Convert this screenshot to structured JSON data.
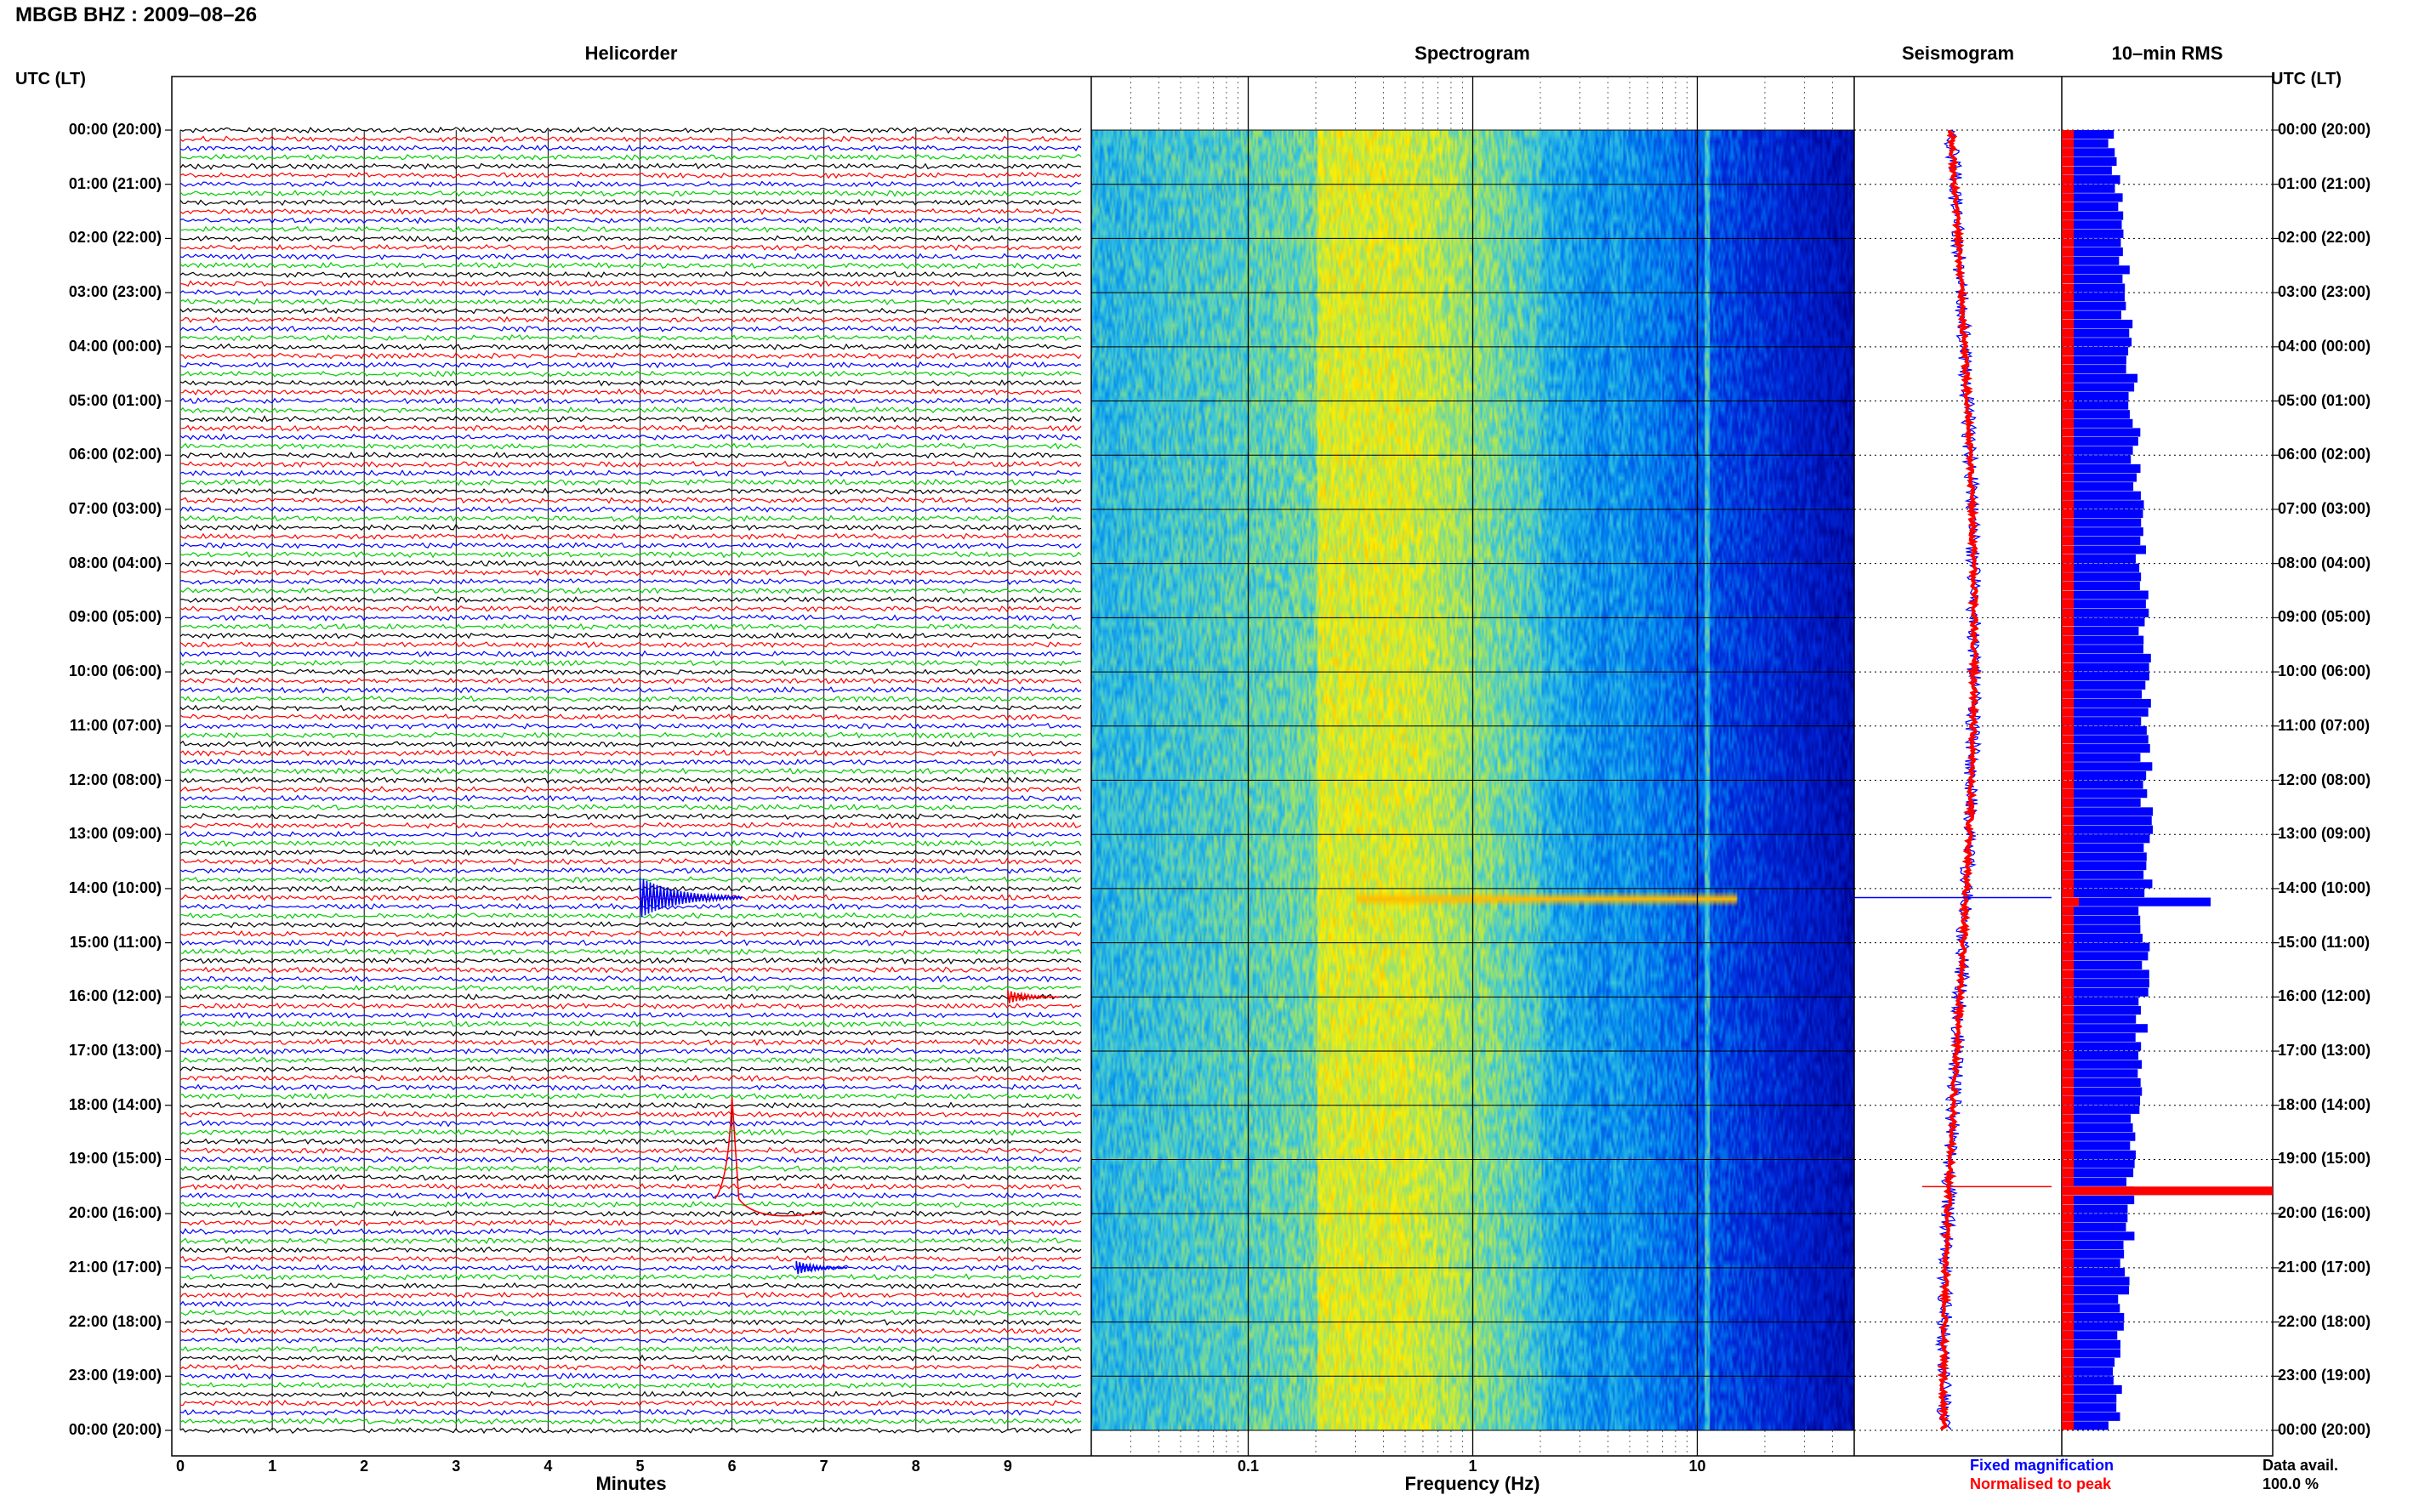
{
  "header": {
    "station_title": "MBGB BHZ : 2009–08–26",
    "left_axis_header": "UTC (LT)",
    "right_axis_header": "UTC (LT)"
  },
  "panels": {
    "helicorder": "Helicorder",
    "spectrogram": "Spectrogram",
    "seismogram": "Seismogram",
    "rms": "10–min RMS"
  },
  "axes": {
    "minutes_label": "Minutes",
    "frequency_label": "Frequency (Hz)"
  },
  "footer": {
    "fixed_magnification": "Fixed magnification",
    "normalised_to_peak": "Normalised to peak",
    "data_avail_label": "Data avail.",
    "data_avail_value": "100.0 %"
  },
  "colors": {
    "trace_cycle": [
      "#000000",
      "#ff0000",
      "#0000ff",
      "#00cc00"
    ],
    "fixed_magnification": "#0000ff",
    "normalised_to_peak": "#ff0000",
    "grid": "#000000"
  },
  "chart_data": [
    {
      "type": "line",
      "panel": "helicorder",
      "xlabel": "Minutes",
      "x_ticks": [
        "0",
        "1",
        "2",
        "3",
        "4",
        "5",
        "6",
        "7",
        "8",
        "9"
      ],
      "xlim": [
        0,
        10
      ],
      "time_labels": [
        "00:00 (20:00)",
        "01:00 (21:00)",
        "02:00 (22:00)",
        "03:00 (23:00)",
        "04:00 (00:00)",
        "05:00 (01:00)",
        "06:00 (02:00)",
        "07:00 (03:00)",
        "08:00 (04:00)",
        "09:00 (05:00)",
        "10:00 (06:00)",
        "11:00 (07:00)",
        "12:00 (08:00)",
        "13:00 (09:00)",
        "14:00 (10:00)",
        "15:00 (11:00)",
        "16:00 (12:00)",
        "17:00 (13:00)",
        "18:00 (14:00)",
        "19:00 (15:00)",
        "20:00 (16:00)",
        "21:00 (17:00)",
        "22:00 (18:00)",
        "23:00 (19:00)",
        "00:00 (20:00)"
      ],
      "traces_per_hour": 6,
      "events": [
        {
          "time": "14:10",
          "minute": 5.0,
          "color": "blue"
        },
        {
          "time": "16:00",
          "minute": 9.0,
          "color": "red"
        },
        {
          "time": "18:00",
          "minute": 6.0,
          "color": "red"
        },
        {
          "time": "21:00",
          "minute": 6.7,
          "color": "blue"
        }
      ],
      "grid": true
    },
    {
      "type": "heatmap",
      "panel": "spectrogram",
      "xlabel": "Frequency (Hz)",
      "x_scale": "log",
      "x_ticks": [
        "0.1",
        "1",
        "10"
      ],
      "xlim": [
        0.02,
        50
      ],
      "dominant_band_hz": [
        0.2,
        0.5
      ],
      "persistent_line_hz": 11
    },
    {
      "type": "line",
      "panel": "seismogram",
      "series": [
        {
          "name": "Fixed magnification",
          "color": "#0000ff"
        },
        {
          "name": "Normalised to peak",
          "color": "#ff0000"
        }
      ]
    },
    {
      "type": "bar",
      "panel": "rms",
      "orientation": "horizontal",
      "series": [
        {
          "name": "Fixed magnification",
          "color": "#0000ff"
        },
        {
          "name": "Normalised to peak",
          "color": "#ff0000"
        }
      ],
      "peaks": [
        {
          "time": "14:10",
          "series": "Fixed magnification"
        },
        {
          "time": "19:30",
          "series": "Normalised to peak"
        }
      ]
    }
  ]
}
